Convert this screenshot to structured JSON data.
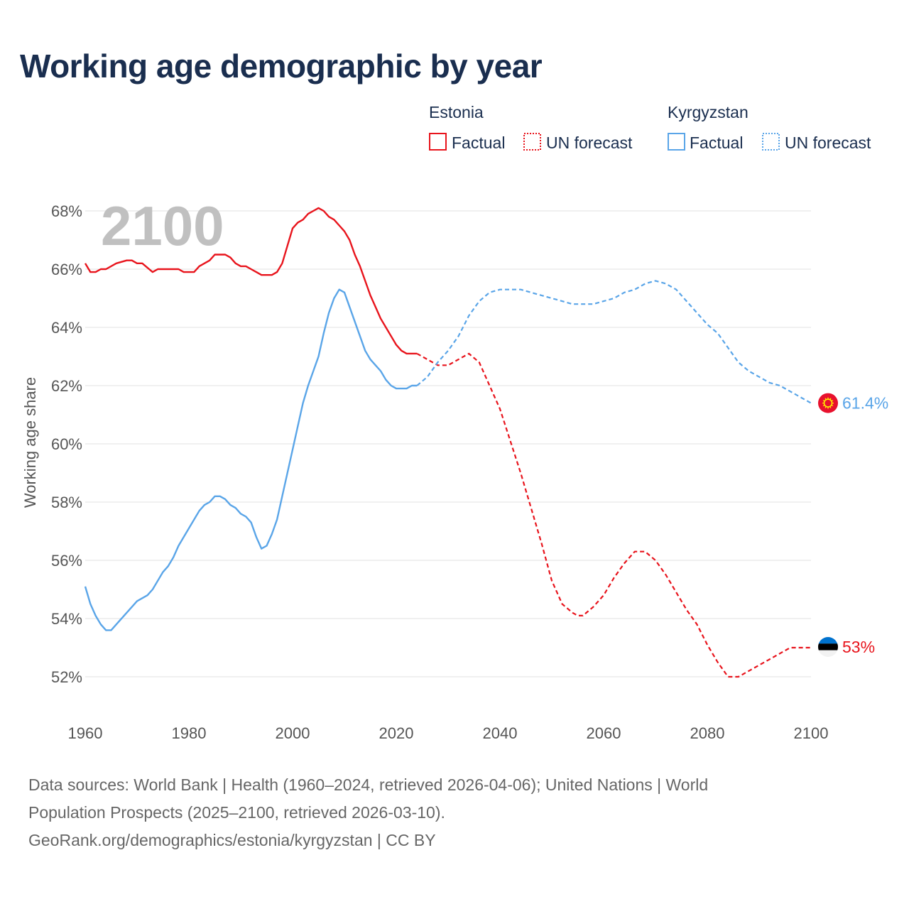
{
  "title": "Working age demographic by year",
  "footer": {
    "line1": "Data sources: World Bank | Health (1960–2024, retrieved 2026-04-06); United Nations | World",
    "line2": "Population Prospects (2025–2100, retrieved 2026-03-10).",
    "line3": "GeoRank.org/demographics/estonia/kyrgyzstan | CC BY"
  },
  "colors": {
    "estonia": "#e8141c",
    "kyrgyzstan": "#5aa5e8",
    "grid": "#e6e6e6",
    "text": "#1a2e4f"
  },
  "chart_data": {
    "type": "line",
    "title": "Working age demographic by year",
    "xlabel": "",
    "ylabel": "Working age share",
    "year_label": "2100",
    "xlim": [
      1960,
      2100
    ],
    "ylim": [
      51,
      69
    ],
    "x_ticks": [
      1960,
      1980,
      2000,
      2020,
      2040,
      2060,
      2080,
      2100
    ],
    "y_ticks": [
      52,
      54,
      56,
      58,
      60,
      62,
      64,
      66,
      68
    ],
    "y_tick_labels": [
      "52%",
      "54%",
      "56%",
      "58%",
      "60%",
      "62%",
      "64%",
      "66%",
      "68%"
    ],
    "grid": true,
    "legend": {
      "placement": "top-right",
      "groups": [
        {
          "name": "Estonia",
          "items": [
            "Factual",
            "UN forecast"
          ]
        },
        {
          "name": "Kyrgyzstan",
          "items": [
            "Factual",
            "UN forecast"
          ]
        }
      ]
    },
    "series": [
      {
        "name": "Estonia",
        "color": "#e8141c",
        "end_label": "53%",
        "flag_icon": "estonia-flag-icon",
        "factual": {
          "x": [
            1960,
            1961,
            1962,
            1963,
            1964,
            1966,
            1968,
            1969,
            1970,
            1971,
            1973,
            1974,
            1976,
            1978,
            1979,
            1980,
            1981,
            1982,
            1983,
            1984,
            1985,
            1987,
            1988,
            1989,
            1990,
            1991,
            1992,
            1993,
            1994,
            1996,
            1997,
            1998,
            1999,
            2000,
            2001,
            2002,
            2003,
            2004,
            2005,
            2006,
            2007,
            2008,
            2009,
            2010,
            2011,
            2012,
            2013,
            2014,
            2015,
            2016,
            2017,
            2018,
            2019,
            2020,
            2021,
            2022,
            2023,
            2024
          ],
          "values": [
            66.2,
            65.9,
            65.9,
            66.0,
            66.0,
            66.2,
            66.3,
            66.3,
            66.2,
            66.2,
            65.9,
            66.0,
            66.0,
            66.0,
            65.9,
            65.9,
            65.9,
            66.1,
            66.2,
            66.3,
            66.5,
            66.5,
            66.4,
            66.2,
            66.1,
            66.1,
            66.0,
            65.9,
            65.8,
            65.8,
            65.9,
            66.2,
            66.8,
            67.4,
            67.6,
            67.7,
            67.9,
            68.0,
            68.1,
            68.0,
            67.8,
            67.7,
            67.5,
            67.3,
            67.0,
            66.5,
            66.1,
            65.6,
            65.1,
            64.7,
            64.3,
            64.0,
            63.7,
            63.4,
            63.2,
            63.1,
            63.1,
            63.1
          ]
        },
        "forecast": {
          "x": [
            2024,
            2026,
            2028,
            2030,
            2032,
            2034,
            2036,
            2038,
            2040,
            2042,
            2044,
            2046,
            2048,
            2050,
            2052,
            2054,
            2055,
            2056,
            2058,
            2060,
            2062,
            2064,
            2066,
            2068,
            2070,
            2072,
            2074,
            2076,
            2078,
            2080,
            2082,
            2084,
            2086,
            2088,
            2090,
            2092,
            2094,
            2096,
            2098,
            2100
          ],
          "values": [
            63.1,
            62.9,
            62.7,
            62.7,
            62.9,
            63.1,
            62.8,
            62.0,
            61.2,
            60.1,
            59.0,
            57.8,
            56.6,
            55.3,
            54.5,
            54.2,
            54.1,
            54.1,
            54.4,
            54.8,
            55.4,
            55.9,
            56.3,
            56.3,
            56.0,
            55.5,
            54.9,
            54.3,
            53.8,
            53.1,
            52.5,
            52.0,
            52.0,
            52.2,
            52.4,
            52.6,
            52.8,
            53.0,
            53.0,
            53.0
          ]
        }
      },
      {
        "name": "Kyrgyzstan",
        "color": "#5aa5e8",
        "end_label": "61.4%",
        "flag_icon": "kyrgyzstan-flag-icon",
        "factual": {
          "x": [
            1960,
            1961,
            1962,
            1963,
            1964,
            1965,
            1966,
            1968,
            1970,
            1972,
            1973,
            1974,
            1975,
            1976,
            1977,
            1978,
            1980,
            1982,
            1983,
            1984,
            1985,
            1986,
            1987,
            1988,
            1989,
            1990,
            1991,
            1992,
            1993,
            1994,
            1995,
            1996,
            1997,
            1998,
            1999,
            2000,
            2001,
            2002,
            2003,
            2004,
            2005,
            2006,
            2007,
            2008,
            2009,
            2010,
            2011,
            2012,
            2013,
            2014,
            2015,
            2016,
            2017,
            2018,
            2019,
            2020,
            2021,
            2022,
            2023,
            2024
          ],
          "values": [
            55.1,
            54.5,
            54.1,
            53.8,
            53.6,
            53.6,
            53.8,
            54.2,
            54.6,
            54.8,
            55.0,
            55.3,
            55.6,
            55.8,
            56.1,
            56.5,
            57.1,
            57.7,
            57.9,
            58.0,
            58.2,
            58.2,
            58.1,
            57.9,
            57.8,
            57.6,
            57.5,
            57.3,
            56.8,
            56.4,
            56.5,
            56.9,
            57.4,
            58.2,
            59.0,
            59.8,
            60.6,
            61.4,
            62.0,
            62.5,
            63.0,
            63.8,
            64.5,
            65.0,
            65.3,
            65.2,
            64.7,
            64.2,
            63.7,
            63.2,
            62.9,
            62.7,
            62.5,
            62.2,
            62.0,
            61.9,
            61.9,
            61.9,
            62.0,
            62.0
          ]
        },
        "forecast": {
          "x": [
            2024,
            2026,
            2028,
            2030,
            2032,
            2034,
            2036,
            2038,
            2040,
            2042,
            2044,
            2046,
            2048,
            2050,
            2052,
            2054,
            2056,
            2058,
            2060,
            2062,
            2064,
            2066,
            2068,
            2070,
            2072,
            2074,
            2076,
            2078,
            2080,
            2082,
            2084,
            2086,
            2088,
            2090,
            2092,
            2094,
            2096,
            2098,
            2100
          ],
          "values": [
            62.0,
            62.3,
            62.8,
            63.2,
            63.7,
            64.4,
            64.9,
            65.2,
            65.3,
            65.3,
            65.3,
            65.2,
            65.1,
            65.0,
            64.9,
            64.8,
            64.8,
            64.8,
            64.9,
            65.0,
            65.2,
            65.3,
            65.5,
            65.6,
            65.5,
            65.3,
            64.9,
            64.5,
            64.1,
            63.8,
            63.3,
            62.8,
            62.5,
            62.3,
            62.1,
            62.0,
            61.8,
            61.6,
            61.4
          ]
        }
      }
    ]
  }
}
